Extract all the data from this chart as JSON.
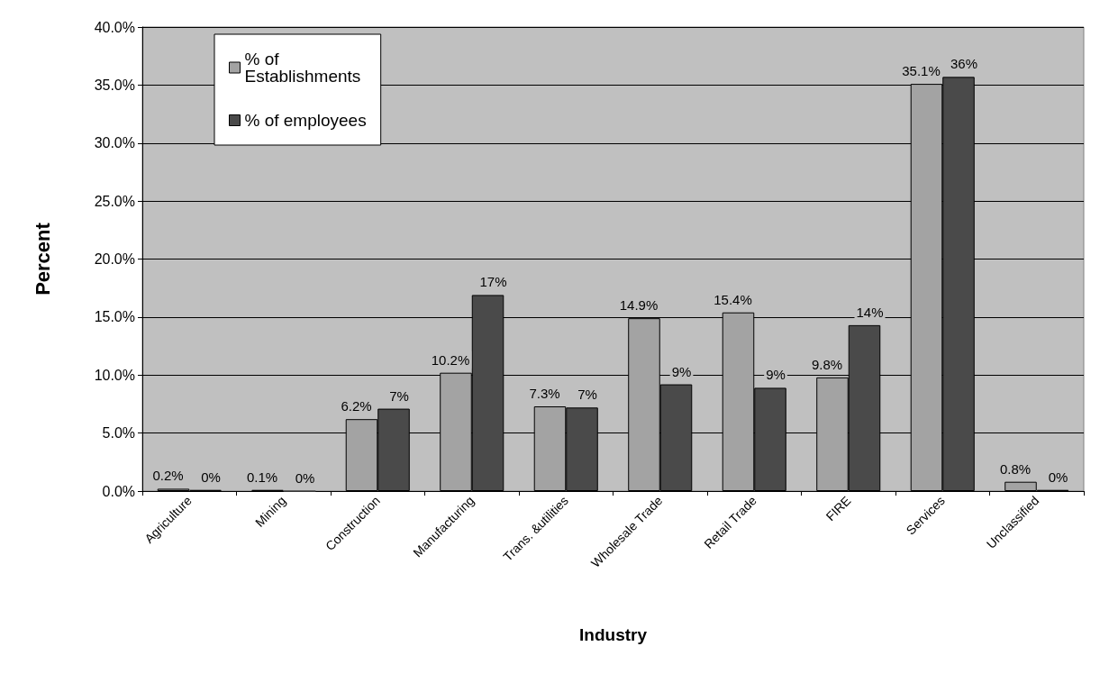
{
  "chart_data": {
    "type": "bar",
    "xlabel": "Industry",
    "ylabel": "Percent",
    "categories": [
      "Agriculture",
      "Mining",
      "Construction",
      "Manufacturing",
      "Trans. &utilities",
      "Wholesale Trade",
      "Retail Trade",
      "FIRE",
      "Services",
      "Unclassified"
    ],
    "series": [
      {
        "name": "% of Establishments",
        "color": "#a3a3a3",
        "values": [
          0.2,
          0.1,
          6.2,
          10.2,
          7.3,
          14.9,
          15.4,
          9.8,
          35.1,
          0.8
        ],
        "value_labels": [
          "0.2%",
          "0.1%",
          "6.2%",
          "10.2%",
          "7.3%",
          "14.9%",
          "15.4%",
          "9.8%",
          "35.1%",
          "0.8%"
        ]
      },
      {
        "name": "% of employees",
        "color": "#4a4a4a",
        "values": [
          0.1,
          0.0,
          7.1,
          16.9,
          7.2,
          9.2,
          8.9,
          14.3,
          35.7,
          0.1
        ],
        "value_labels": [
          "0%",
          "0%",
          "7%",
          "17%",
          "7%",
          "9%",
          "9%",
          "14%",
          "36%",
          "0%"
        ]
      }
    ],
    "ylim": [
      0,
      40
    ],
    "yticks": [
      {
        "value": 0,
        "label": "0.0%"
      },
      {
        "value": 5,
        "label": "5.0%"
      },
      {
        "value": 10,
        "label": "10.0%"
      },
      {
        "value": 15,
        "label": "15.0%"
      },
      {
        "value": 20,
        "label": "20.0%"
      },
      {
        "value": 25,
        "label": "25.0%"
      },
      {
        "value": 30,
        "label": "30.0%"
      },
      {
        "value": 35,
        "label": "35.0%"
      },
      {
        "value": 40,
        "label": "40.0%"
      }
    ],
    "grid": "y",
    "legend": "top left"
  }
}
